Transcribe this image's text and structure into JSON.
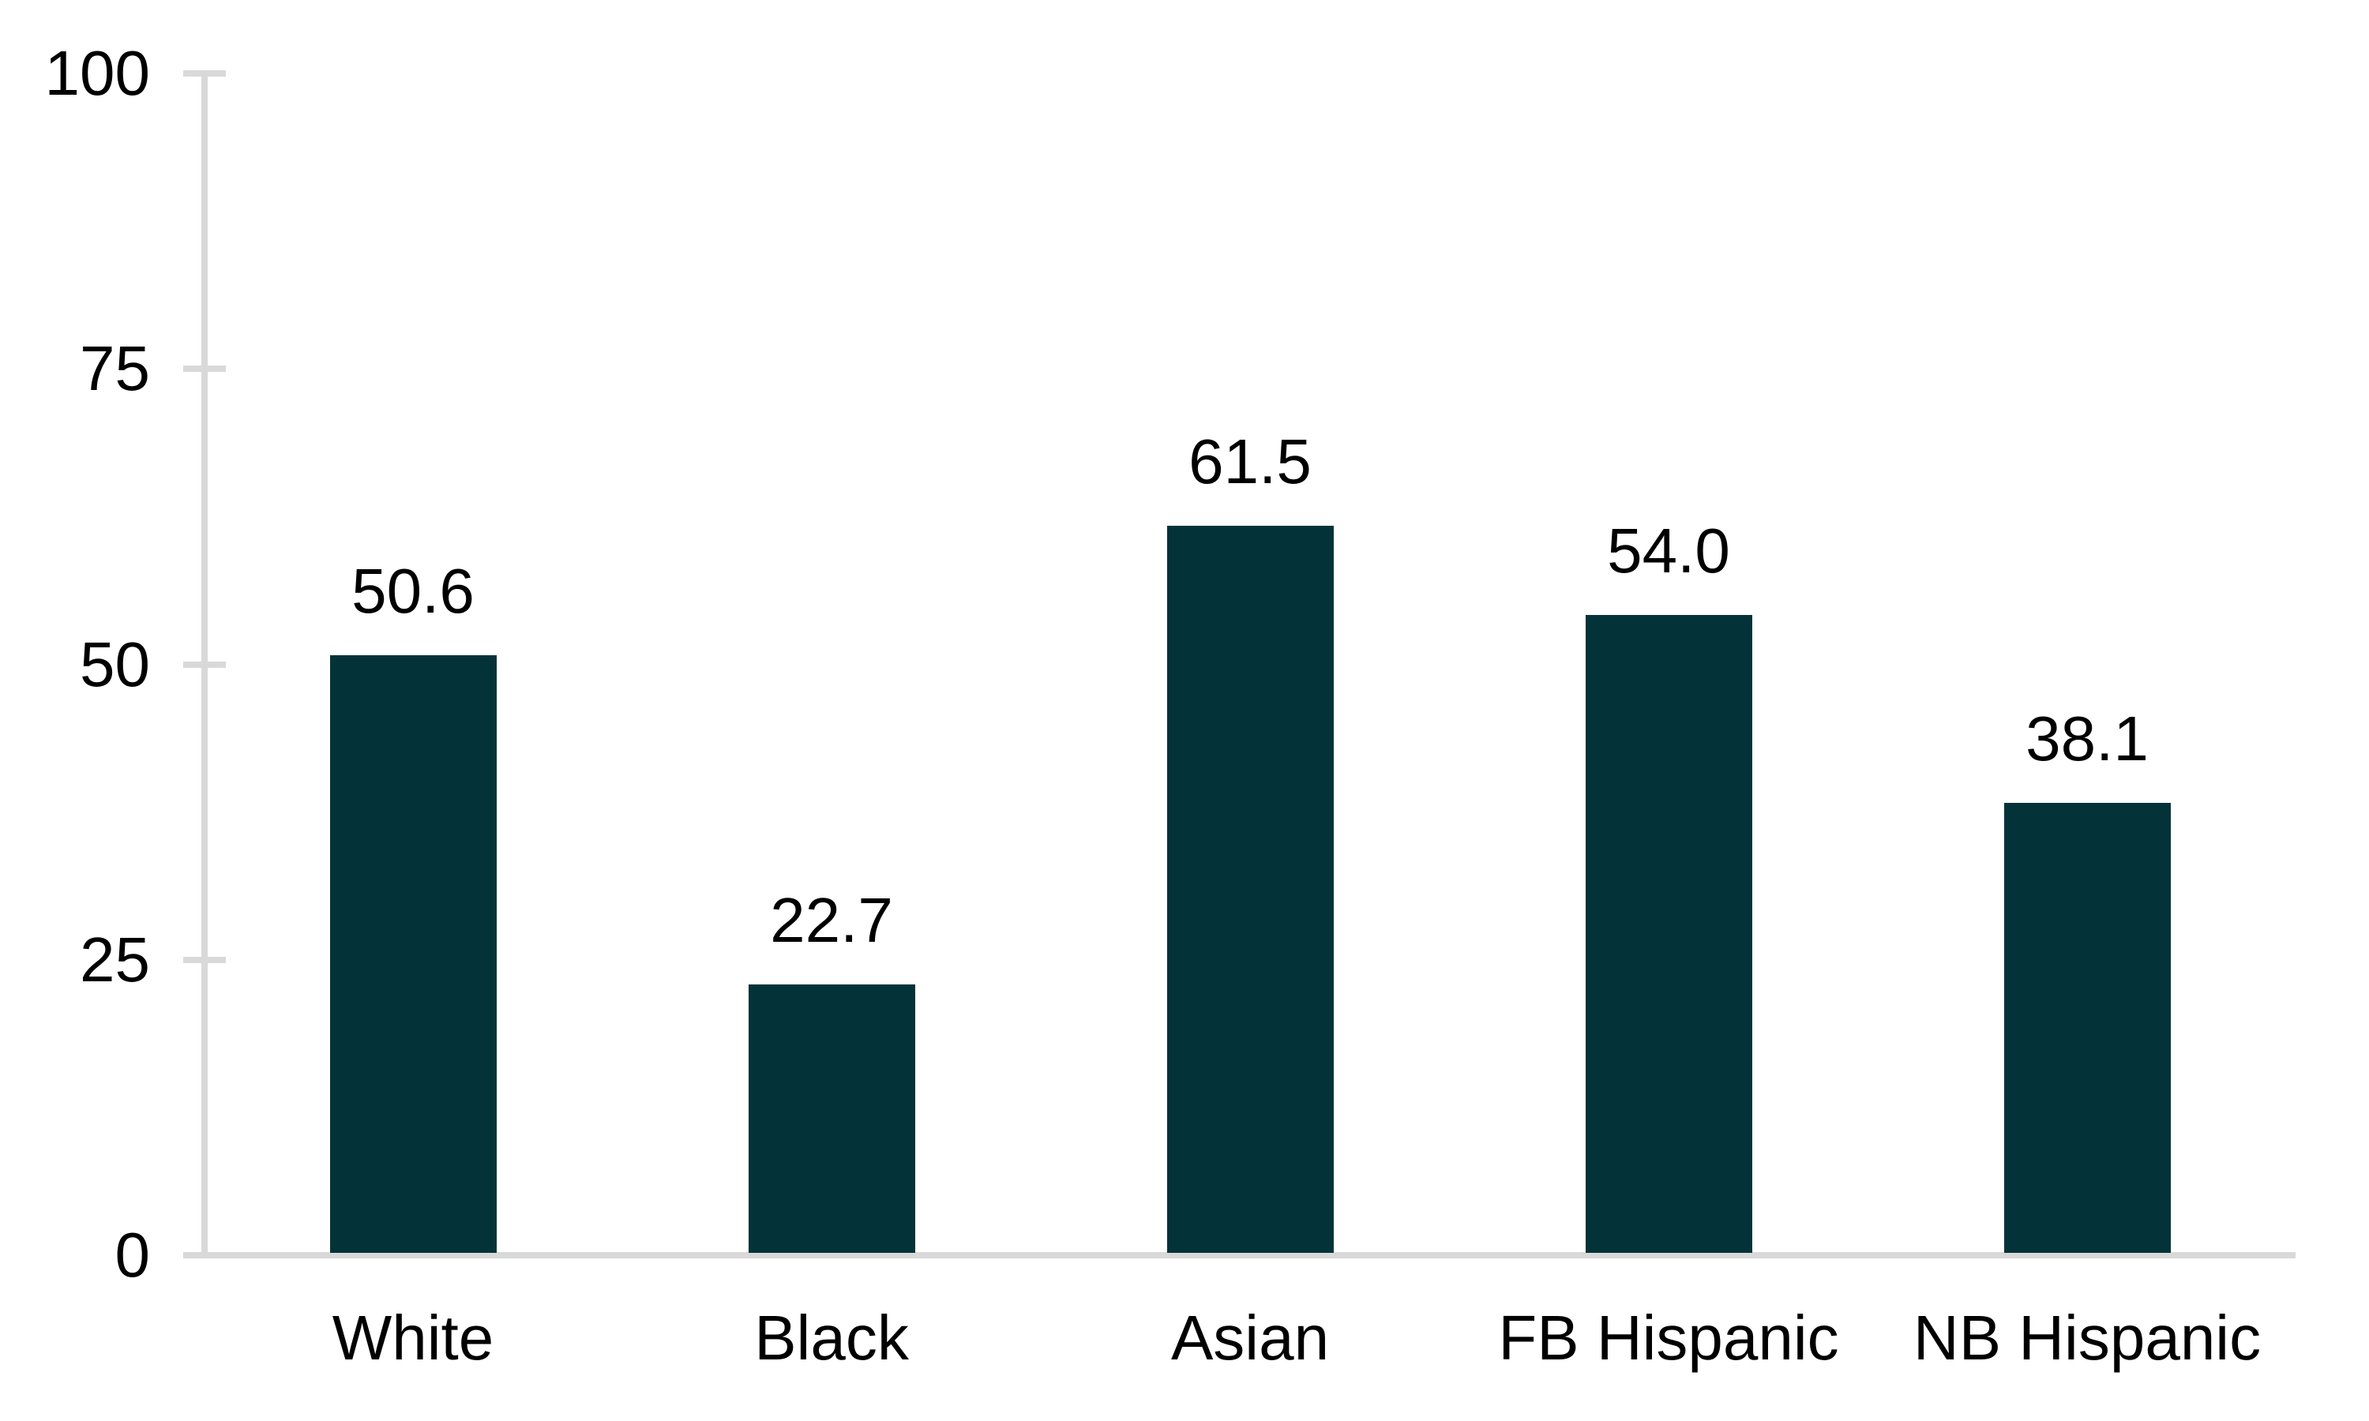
{
  "chart_data": {
    "type": "bar",
    "title": "",
    "xlabel": "",
    "ylabel": "",
    "categories": [
      "White",
      "Black",
      "Asian",
      "FB Hispanic",
      "NB Hispanic"
    ],
    "values": [
      50.6,
      22.7,
      61.5,
      54.0,
      38.1
    ],
    "value_labels": [
      "50.6",
      "22.7",
      "61.5",
      "54.0",
      "38.1"
    ],
    "ylim": [
      0,
      100
    ],
    "yticks": [
      0,
      25,
      50,
      75,
      100
    ],
    "ytick_labels": [
      "0",
      "25",
      "50",
      "75",
      "100"
    ],
    "grid": false,
    "legend": false,
    "bar_color": "#033338",
    "axis_color": "#d9d9d9",
    "text_color": "#000000"
  }
}
